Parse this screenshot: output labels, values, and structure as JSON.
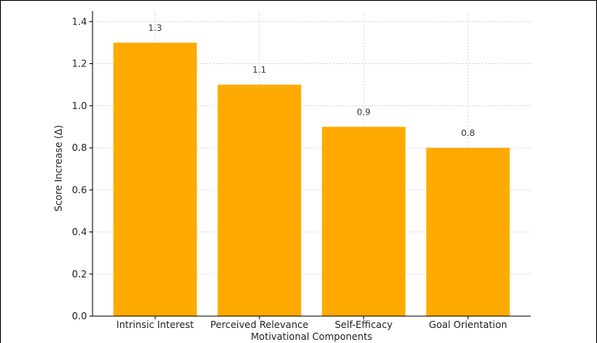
{
  "chart_data": {
    "type": "bar",
    "title": "",
    "xlabel": "Motivational Components",
    "ylabel": "Score Increase (Δ)",
    "categories": [
      "Intrinsic Interest",
      "Perceived Relevance",
      "Self-Efficacy",
      "Goal Orientation"
    ],
    "values": [
      1.3,
      1.1,
      0.9,
      0.8
    ],
    "data_labels": [
      "1.3",
      "1.1",
      "0.9",
      "0.8"
    ],
    "ylim": [
      0,
      1.45
    ],
    "yticks": [
      0.0,
      0.2,
      0.4,
      0.6,
      0.8,
      1.0,
      1.2,
      1.4
    ],
    "ytick_labels": [
      "0.0",
      "0.2",
      "0.4",
      "0.6",
      "0.8",
      "1.0",
      "1.2",
      "1.4"
    ],
    "grid": true,
    "bar_color": "#FFAA00",
    "grid_color": "#d0d0d0"
  }
}
